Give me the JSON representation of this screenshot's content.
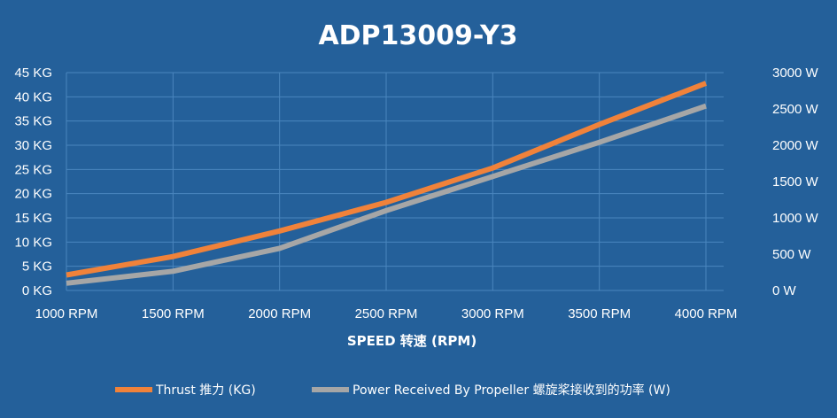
{
  "chart_data": {
    "type": "line",
    "title": "ADP13009-Y3",
    "xlabel": "SPEED 转速 (RPM)",
    "categories": [
      "1000 RPM",
      "1500 RPM",
      "2000 RPM",
      "2500 RPM",
      "3000 RPM",
      "3500 RPM",
      "4000 RPM"
    ],
    "x": [
      1000,
      1500,
      2000,
      2500,
      3000,
      3500,
      4000
    ],
    "y_left": {
      "ticks": [
        "0 KG",
        "5 KG",
        "10 KG",
        "15 KG",
        "20 KG",
        "25 KG",
        "30 KG",
        "35 KG",
        "40 KG",
        "45 KG"
      ],
      "ylim": [
        0,
        45
      ]
    },
    "y_right": {
      "ticks": [
        "0 W",
        "500 W",
        "1000 W",
        "1500 W",
        "2000 W",
        "2500 W",
        "3000 W"
      ],
      "ylim": [
        0,
        3000
      ]
    },
    "grid": true,
    "legend_position": "bottom",
    "series": [
      {
        "name": "Thrust 推力 (KG)",
        "axis": "left",
        "color": "#f0823a",
        "values": [
          3.2,
          7.0,
          12.3,
          18.2,
          25.3,
          34.3,
          42.8
        ]
      },
      {
        "name": "Power Received By Propeller 螺旋桨接收到的功率 (W)",
        "axis": "right",
        "color": "#a6a6a6",
        "values": [
          100,
          265,
          580,
          1100,
          1570,
          2040,
          2540
        ]
      }
    ]
  }
}
